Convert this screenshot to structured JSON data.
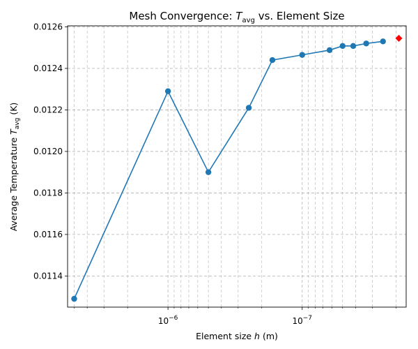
{
  "chart_data": {
    "type": "line",
    "title_prefix": "Mesh Convergence: ",
    "title_var": "T",
    "title_sub": "avg",
    "title_suffix": " vs. Element Size",
    "xlabel_prefix": "Element size ",
    "xlabel_var": "h",
    "xlabel_suffix": " (m)",
    "ylabel_prefix": "Average Temperature ",
    "ylabel_var": "T",
    "ylabel_sub": "avg",
    "ylabel_suffix": " (K)",
    "x_scale": "log",
    "x_inverted": true,
    "xlim": [
      5.6e-06,
      1.68e-08
    ],
    "ylim": [
      0.01125,
      0.012605
    ],
    "x_ticks": [
      {
        "value": 1e-06,
        "base": "10",
        "exp": "−6"
      },
      {
        "value": 1e-07,
        "base": "10",
        "exp": "−7"
      }
    ],
    "y_ticks": [
      {
        "value": 0.0114,
        "label": "0.0114"
      },
      {
        "value": 0.0116,
        "label": "0.0116"
      },
      {
        "value": 0.0118,
        "label": "0.0118"
      },
      {
        "value": 0.012,
        "label": "0.0120"
      },
      {
        "value": 0.0122,
        "label": "0.0122"
      },
      {
        "value": 0.0124,
        "label": "0.0124"
      },
      {
        "value": 0.0126,
        "label": "0.0126"
      }
    ],
    "grid": true,
    "series": [
      {
        "color": "#1f77b4",
        "marker": "circle",
        "x": [
          5e-06,
          1e-06,
          5e-07,
          2.5e-07,
          1.667e-07,
          1e-07,
          6.25e-08,
          5e-08,
          4.167e-08,
          3.333e-08,
          2.5e-08
        ],
        "y": [
          0.01129,
          0.01229,
          0.0119,
          0.01221,
          0.01244,
          0.012465,
          0.012488,
          0.012508,
          0.012508,
          0.01252,
          0.01253
        ]
      }
    ],
    "highlight_point": {
      "x": 1.905e-08,
      "y": 0.012545,
      "color": "#ff0000",
      "marker": "diamond"
    }
  }
}
